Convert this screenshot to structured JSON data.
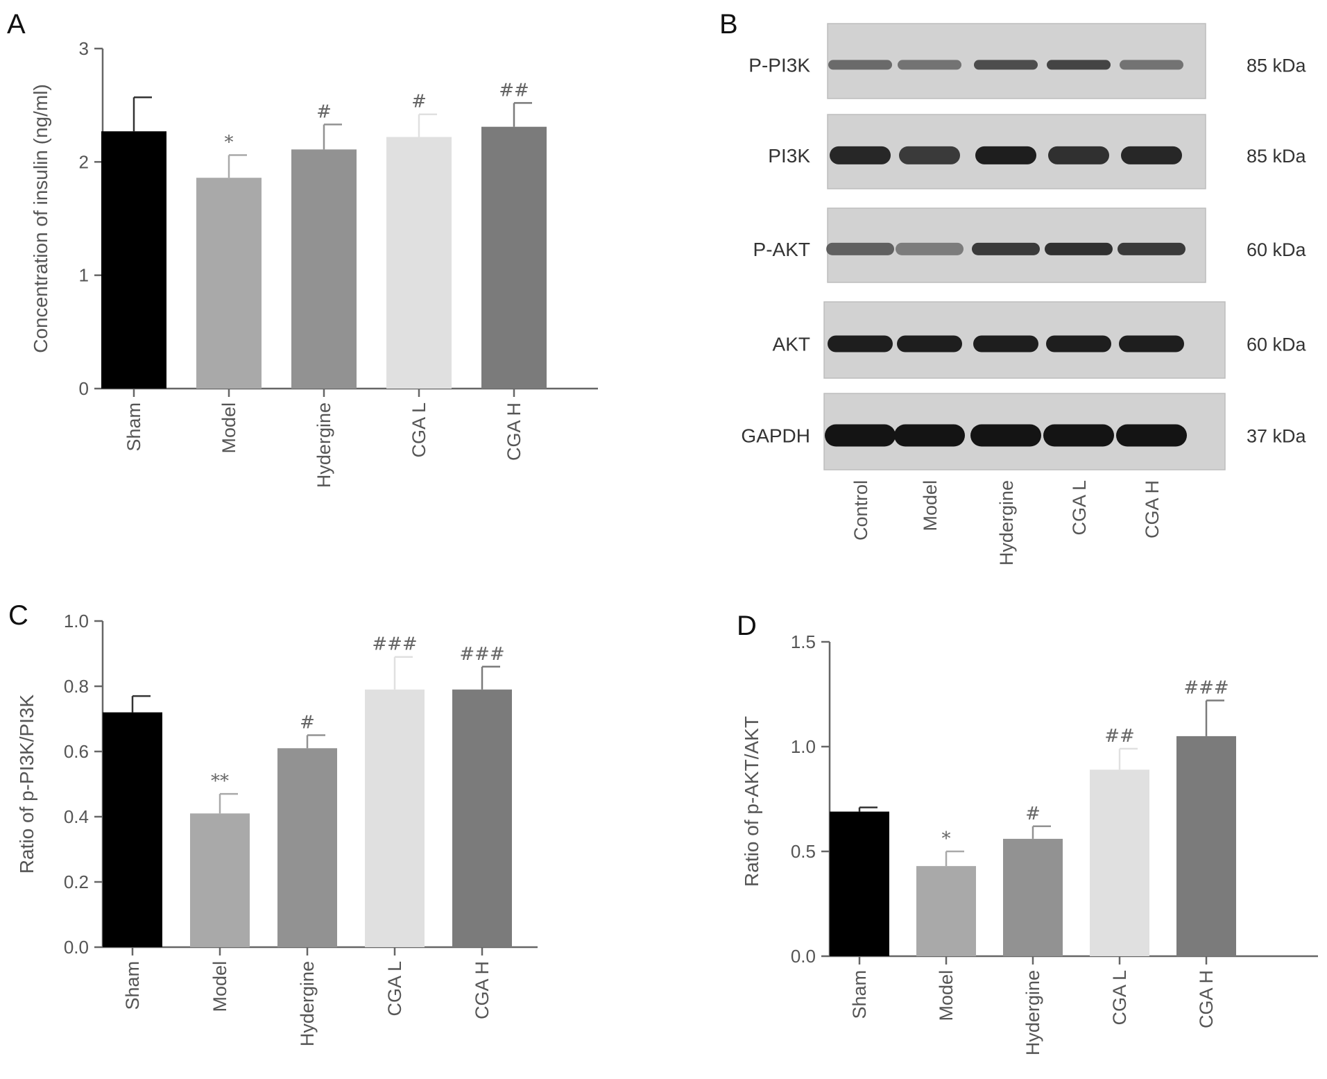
{
  "chart_data": [
    {
      "panel": "A",
      "type": "bar",
      "categories": [
        "Sham",
        "Model",
        "Hydergine",
        "CGA L",
        "CGA H"
      ],
      "values": [
        2.27,
        1.86,
        2.11,
        2.22,
        2.31
      ],
      "errors": [
        0.3,
        0.2,
        0.22,
        0.2,
        0.21
      ],
      "significance": [
        "",
        "*",
        "#",
        "#",
        "##"
      ],
      "colors": [
        "#000000",
        "#a9a9a9",
        "#929292",
        "#e0e0e0",
        "#7b7b7b"
      ],
      "ylabel": "Concentration of insulin (ng/ml)",
      "ylim": [
        0,
        3
      ],
      "yticks": [
        "0",
        "1",
        "2",
        "3"
      ],
      "ytick_values": [
        0,
        1,
        2,
        3
      ]
    },
    {
      "panel": "C",
      "type": "bar",
      "categories": [
        "Sham",
        "Model",
        "Hydergine",
        "CGA L",
        "CGA H"
      ],
      "values": [
        0.72,
        0.41,
        0.61,
        0.79,
        0.79
      ],
      "errors": [
        0.05,
        0.06,
        0.04,
        0.1,
        0.07
      ],
      "significance": [
        "",
        "**",
        "#",
        "###",
        "###"
      ],
      "colors": [
        "#000000",
        "#a9a9a9",
        "#929292",
        "#e0e0e0",
        "#7b7b7b"
      ],
      "ylabel": "Ratio of p-PI3K/PI3K",
      "ylim": [
        0,
        1.0
      ],
      "yticks": [
        "0.0",
        "0.2",
        "0.4",
        "0.6",
        "0.8",
        "1.0"
      ],
      "ytick_values": [
        0,
        0.2,
        0.4,
        0.6,
        0.8,
        1.0
      ]
    },
    {
      "panel": "D",
      "type": "bar",
      "categories": [
        "Sham",
        "Model",
        "Hydergine",
        "CGA L",
        "CGA H"
      ],
      "values": [
        0.69,
        0.43,
        0.56,
        0.89,
        1.05
      ],
      "errors": [
        0.02,
        0.07,
        0.06,
        0.1,
        0.17
      ],
      "significance": [
        "",
        "*",
        "#",
        "##",
        "###"
      ],
      "colors": [
        "#000000",
        "#a9a9a9",
        "#929292",
        "#e0e0e0",
        "#7b7b7b"
      ],
      "ylabel": "Ratio of p-AKT/AKT",
      "ylim": [
        0,
        1.5
      ],
      "yticks": [
        "0.0",
        "0.5",
        "1.0",
        "1.5"
      ],
      "ytick_values": [
        0,
        0.5,
        1.0,
        1.5
      ]
    }
  ],
  "blot": {
    "panel": "B",
    "rows": [
      {
        "label": "P-PI3K",
        "kda": "85 kDa",
        "intensities": [
          0.55,
          0.5,
          0.7,
          0.75,
          0.5
        ]
      },
      {
        "label": "PI3K",
        "kda": "85 kDa",
        "intensities": [
          0.9,
          0.8,
          0.95,
          0.85,
          0.9
        ]
      },
      {
        "label": "P-AKT",
        "kda": "60 kDa",
        "intensities": [
          0.6,
          0.45,
          0.8,
          0.85,
          0.8
        ]
      },
      {
        "label": "AKT",
        "kda": "60 kDa",
        "intensities": [
          0.95,
          0.95,
          0.95,
          0.95,
          0.95
        ]
      },
      {
        "label": "GAPDH",
        "kda": "37 kDa",
        "intensities": [
          1.0,
          1.0,
          1.0,
          1.0,
          1.0
        ]
      }
    ],
    "lanes": [
      "Control",
      "Model",
      "Hydergine",
      "CGA L",
      "CGA H"
    ],
    "background": "#d2d2d2",
    "band_color": "#141414"
  },
  "panel_letters": {
    "a": "A",
    "b": "B",
    "c": "C",
    "d": "D"
  }
}
